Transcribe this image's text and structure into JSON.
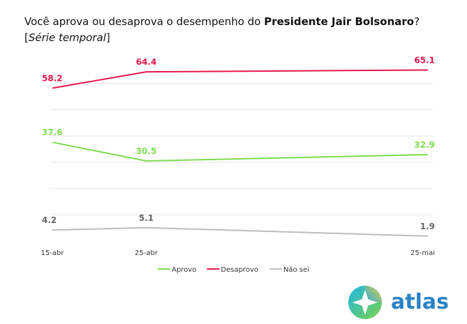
{
  "header": {
    "title_prefix": "Você aprova ou desaprova o desempenho do ",
    "title_bold": "Presidente Jair Bolsonaro",
    "title_suffix": "?",
    "subtitle_open": "[",
    "subtitle_italic": "Série temporal",
    "subtitle_close": "]"
  },
  "chart_data": {
    "type": "line",
    "title": "Você aprova ou desaprova o desempenho do Presidente Jair Bolsonaro?",
    "subtitle": "[Série temporal]",
    "x": [
      "15-abr",
      "25-abr",
      "25-mai"
    ],
    "x_days": [
      0,
      10,
      40
    ],
    "series": [
      {
        "name": "Aprovo",
        "values": [
          37.6,
          30.5,
          32.9
        ],
        "labels": [
          "37.6",
          "30.5",
          "32.9"
        ],
        "color": "#7ddc4f"
      },
      {
        "name": "Desaprovo",
        "values": [
          58.2,
          64.4,
          65.1
        ],
        "labels": [
          "58.2",
          "64.4",
          "65.1"
        ],
        "color": "#e8174d"
      },
      {
        "name": "Não sei",
        "values": [
          4.2,
          5.1,
          1.9
        ],
        "labels": [
          "4.2",
          "5.1",
          "1.9"
        ],
        "color": "#bdbdbd"
      }
    ],
    "ylim": [
      0,
      70
    ],
    "grid": true,
    "legend_position": "bottom"
  },
  "brand": {
    "name": "atlas",
    "color": "#2a82c6",
    "logo_icon": "atlas-compass-logo-icon"
  }
}
